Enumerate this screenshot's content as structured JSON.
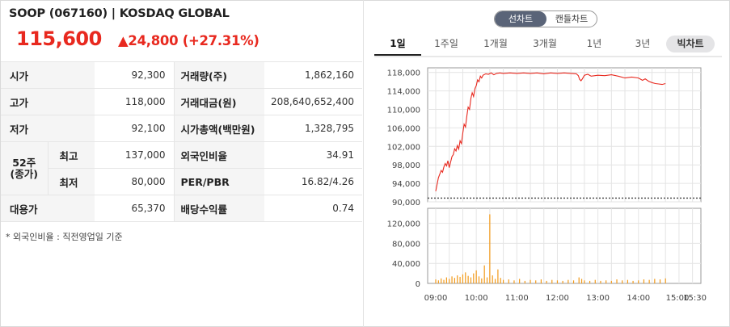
{
  "header": {
    "title": "SOOP (067160) | KOSDAQ GLOBAL",
    "price": "115,600",
    "change": "▲24,800 (+27.31%)"
  },
  "table": {
    "rows": [
      {
        "label": "시가",
        "value": "92,300",
        "label2": "거래량(주)",
        "value2": "1,862,160"
      },
      {
        "label": "고가",
        "value": "118,000",
        "label2": "거래대금(원)",
        "value2": "208,640,652,400"
      },
      {
        "label": "저가",
        "value": "92,100",
        "label2": "시가총액(백만원)",
        "value2": "1,328,795"
      },
      {
        "group": "52주\n(종가)",
        "label": "최고",
        "value": "137,000",
        "label2": "외국인비율",
        "value2": "34.91"
      },
      {
        "label": "최저",
        "value": "80,000",
        "label2": "PER/PBR",
        "value2": "16.82/4.26"
      },
      {
        "label": "대용가",
        "value": "65,370",
        "label2": "배당수익률",
        "value2": "0.74"
      }
    ],
    "note": "* 외국인비율 : 직전영업일 기준"
  },
  "chart_toggle": {
    "line": "선차트",
    "candle": "캔들차트"
  },
  "period_tabs": [
    "1일",
    "1주일",
    "1개월",
    "3개월",
    "1년",
    "3년",
    "빅차트"
  ],
  "colors": {
    "up": "#e8291f",
    "price_line": "#e8291f",
    "volume_bar": "#f29a1a",
    "prev_close_line": "#555555"
  },
  "chart_data": {
    "type": "line",
    "price": {
      "yticks": [
        "118,000",
        "114,000",
        "110,000",
        "106,000",
        "102,000",
        "98,000",
        "94,000",
        "90,000"
      ],
      "ytick_values": [
        118000,
        114000,
        110000,
        106000,
        102000,
        98000,
        94000,
        90000
      ],
      "ylim": [
        90000,
        119000
      ],
      "prev_close": 90800,
      "points": [
        [
          0,
          92300
        ],
        [
          2,
          93800
        ],
        [
          4,
          95200
        ],
        [
          6,
          96000
        ],
        [
          8,
          96800
        ],
        [
          10,
          96400
        ],
        [
          12,
          97500
        ],
        [
          14,
          98300
        ],
        [
          16,
          97800
        ],
        [
          18,
          98900
        ],
        [
          20,
          97400
        ],
        [
          22,
          98600
        ],
        [
          24,
          99800
        ],
        [
          26,
          100200
        ],
        [
          28,
          101500
        ],
        [
          30,
          101000
        ],
        [
          32,
          102200
        ],
        [
          34,
          101400
        ],
        [
          36,
          103200
        ],
        [
          38,
          102600
        ],
        [
          40,
          104800
        ],
        [
          42,
          106800
        ],
        [
          44,
          106200
        ],
        [
          46,
          108600
        ],
        [
          48,
          110500
        ],
        [
          50,
          110000
        ],
        [
          52,
          112400
        ],
        [
          54,
          113600
        ],
        [
          56,
          112800
        ],
        [
          58,
          114500
        ],
        [
          60,
          115200
        ],
        [
          62,
          116400
        ],
        [
          64,
          116000
        ],
        [
          66,
          117200
        ],
        [
          68,
          116800
        ],
        [
          70,
          117400
        ],
        [
          74,
          117700
        ],
        [
          78,
          117600
        ],
        [
          82,
          117900
        ],
        [
          86,
          117500
        ],
        [
          90,
          117800
        ],
        [
          95,
          117900
        ],
        [
          100,
          117800
        ],
        [
          110,
          117900
        ],
        [
          120,
          117800
        ],
        [
          130,
          117900
        ],
        [
          140,
          117800
        ],
        [
          150,
          117900
        ],
        [
          160,
          117700
        ],
        [
          170,
          117900
        ],
        [
          180,
          117800
        ],
        [
          190,
          117900
        ],
        [
          200,
          117800
        ],
        [
          208,
          117700
        ],
        [
          211,
          117300
        ],
        [
          213,
          116500
        ],
        [
          215,
          116200
        ],
        [
          217,
          116600
        ],
        [
          220,
          117400
        ],
        [
          225,
          117600
        ],
        [
          230,
          117200
        ],
        [
          240,
          117400
        ],
        [
          250,
          117300
        ],
        [
          260,
          117500
        ],
        [
          270,
          117200
        ],
        [
          280,
          116800
        ],
        [
          290,
          117000
        ],
        [
          300,
          116800
        ],
        [
          306,
          116300
        ],
        [
          310,
          116600
        ],
        [
          315,
          116100
        ],
        [
          320,
          115800
        ],
        [
          325,
          115600
        ],
        [
          330,
          115500
        ],
        [
          335,
          115400
        ],
        [
          340,
          115600
        ]
      ]
    },
    "volume": {
      "yticks": [
        "120,000",
        "80,000",
        "40,000",
        "0"
      ],
      "ytick_values": [
        120000,
        80000,
        40000,
        0
      ],
      "ylim": [
        0,
        150000
      ],
      "bars": [
        [
          0,
          8000
        ],
        [
          4,
          6000
        ],
        [
          8,
          10000
        ],
        [
          12,
          7000
        ],
        [
          16,
          12000
        ],
        [
          20,
          9000
        ],
        [
          24,
          14000
        ],
        [
          28,
          11000
        ],
        [
          32,
          16000
        ],
        [
          36,
          13000
        ],
        [
          40,
          18000
        ],
        [
          44,
          22000
        ],
        [
          48,
          15000
        ],
        [
          52,
          12000
        ],
        [
          56,
          20000
        ],
        [
          60,
          26000
        ],
        [
          64,
          14000
        ],
        [
          68,
          10000
        ],
        [
          72,
          36000
        ],
        [
          76,
          12000
        ],
        [
          80,
          138000
        ],
        [
          84,
          16000
        ],
        [
          88,
          9000
        ],
        [
          92,
          28000
        ],
        [
          96,
          11000
        ],
        [
          100,
          7000
        ],
        [
          108,
          8000
        ],
        [
          116,
          6000
        ],
        [
          124,
          9000
        ],
        [
          132,
          5000
        ],
        [
          140,
          7000
        ],
        [
          148,
          6000
        ],
        [
          156,
          8000
        ],
        [
          164,
          5000
        ],
        [
          172,
          7000
        ],
        [
          180,
          6000
        ],
        [
          188,
          5000
        ],
        [
          196,
          7000
        ],
        [
          204,
          6000
        ],
        [
          212,
          12000
        ],
        [
          216,
          9000
        ],
        [
          220,
          6000
        ],
        [
          228,
          5000
        ],
        [
          236,
          7000
        ],
        [
          244,
          5000
        ],
        [
          252,
          6000
        ],
        [
          260,
          5000
        ],
        [
          268,
          8000
        ],
        [
          276,
          6000
        ],
        [
          284,
          7000
        ],
        [
          292,
          5000
        ],
        [
          300,
          6000
        ],
        [
          308,
          8000
        ],
        [
          316,
          7000
        ],
        [
          324,
          9000
        ],
        [
          332,
          8000
        ],
        [
          340,
          10000
        ]
      ]
    },
    "xticks": [
      "09:00",
      "10:00",
      "11:00",
      "12:00",
      "13:00",
      "14:00",
      "15:00",
      "15:30"
    ],
    "xtick_minutes": [
      0,
      60,
      120,
      180,
      240,
      300,
      360,
      390
    ],
    "xlim": [
      0,
      390
    ],
    "grid": true
  }
}
